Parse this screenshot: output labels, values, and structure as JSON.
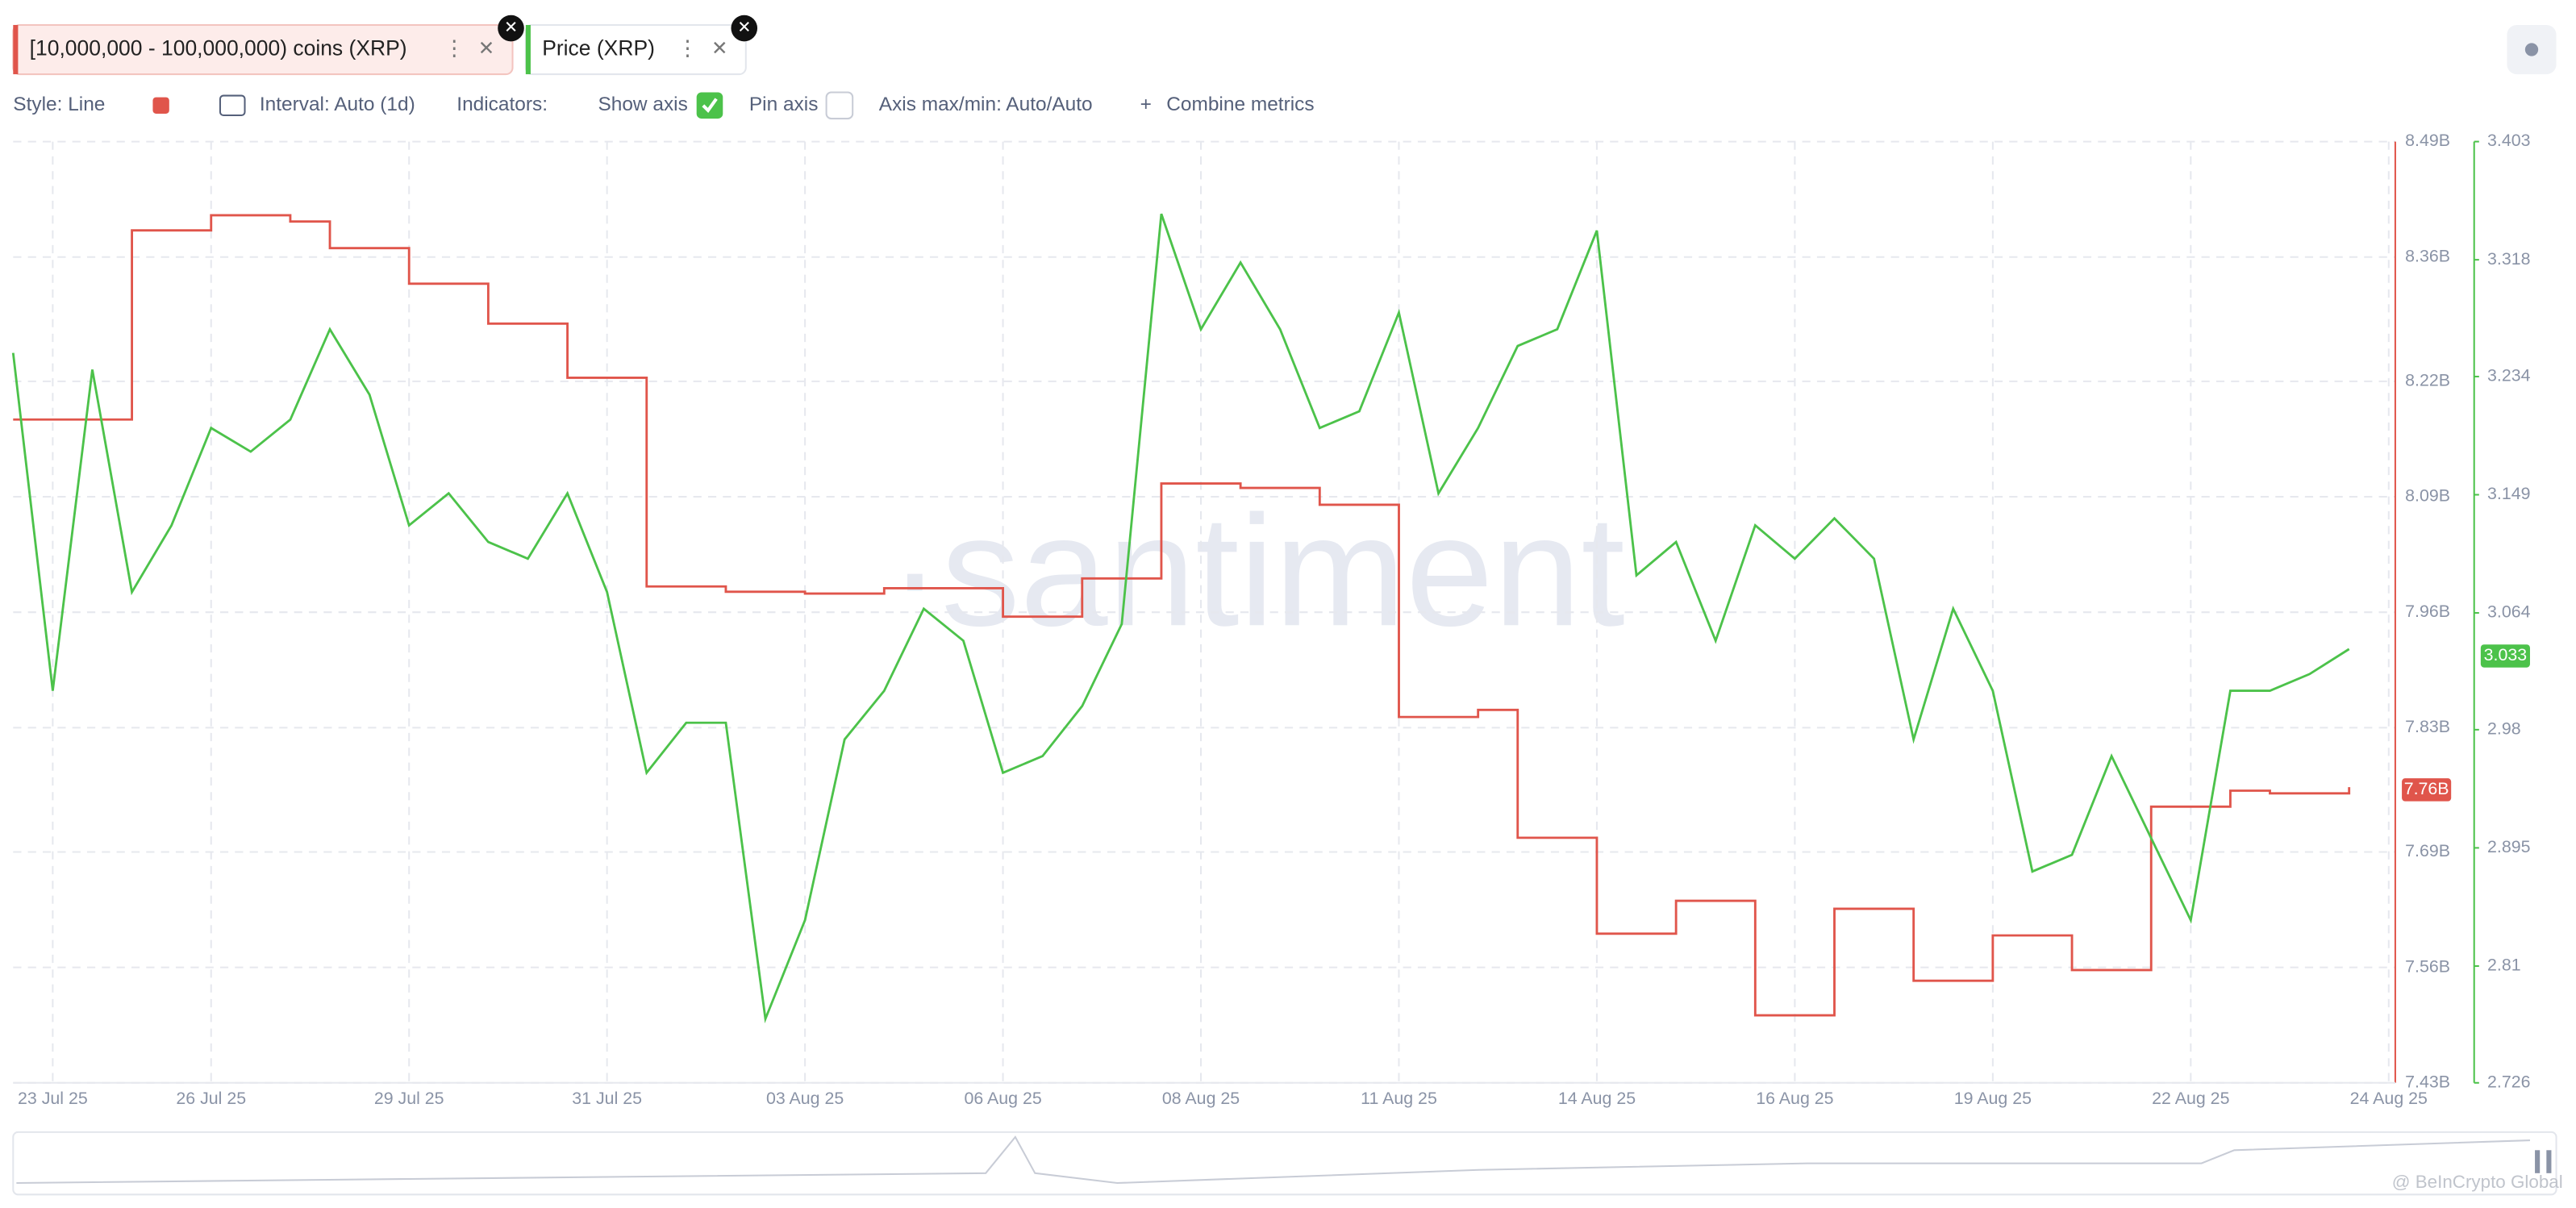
{
  "ui": {
    "toolbar": [
      "Style: Line",
      "Interval: Auto (1d)",
      "Indicators:",
      "Show axis",
      "Pin axis",
      "Axis max/min: Auto/Auto",
      "Combine metrics"
    ],
    "watermark": "·santiment",
    "credit": "@ BeInCrypto Global"
  },
  "chart_data": {
    "type": "line",
    "categories": [
      null,
      "23 Jul 25",
      null,
      null,
      null,
      "26 Jul 25",
      null,
      null,
      null,
      null,
      "29 Jul 25",
      null,
      null,
      null,
      null,
      "31 Jul 25",
      null,
      null,
      null,
      null,
      "03 Aug 25",
      null,
      null,
      null,
      null,
      "06 Aug 25",
      null,
      null,
      null,
      null,
      "08 Aug 25",
      null,
      null,
      null,
      null,
      "11 Aug 25",
      null,
      null,
      null,
      null,
      "14 Aug 25",
      null,
      null,
      null,
      null,
      "16 Aug 25",
      null,
      null,
      null,
      null,
      "19 Aug 25",
      null,
      null,
      null,
      null,
      "22 Aug 25",
      null,
      null,
      null,
      null,
      "24 Aug 25"
    ],
    "series": [
      {
        "name": "[10,000,000 - 100,000,000) coins (XRP)",
        "color": "#e0554b",
        "axis": "y",
        "step": true,
        "values": [
          8177000000,
          8177000000,
          8177000000,
          8390000000,
          8390000000,
          8407000000,
          8407000000,
          8400000000,
          8370000000,
          8370000000,
          8330000000,
          8330000000,
          8285000000,
          8285000000,
          8224000000,
          8224000000,
          7989000000,
          7989000000,
          7983000000,
          7983000000,
          7981000000,
          7981000000,
          7987000000,
          7987000000,
          7987000000,
          7955000000,
          7955000000,
          7998000000,
          7998000000,
          8105000000,
          8105000000,
          8100000000,
          8100000000,
          8081000000,
          8081000000,
          7842000000,
          7842000000,
          7850000000,
          7706000000,
          7706000000,
          7598000000,
          7598000000,
          7635000000,
          7635000000,
          7506000000,
          7506000000,
          7626000000,
          7626000000,
          7545000000,
          7545000000,
          7596000000,
          7596000000,
          7557000000,
          7557000000,
          7741000000,
          7741000000,
          7759000000,
          7756000000,
          7756000000,
          7763000000,
          null
        ],
        "last_value": {
          "value": 7760000000,
          "label": "7.76B"
        }
      },
      {
        "name": "Price (XRP)",
        "color": "#4cc24a",
        "axis": "y2",
        "values": [
          3.251,
          3.008,
          3.239,
          3.079,
          3.127,
          3.197,
          3.18,
          3.203,
          3.268,
          3.221,
          3.127,
          3.15,
          3.115,
          3.103,
          3.15,
          3.079,
          2.949,
          2.985,
          2.985,
          2.772,
          2.843,
          2.973,
          3.008,
          3.067,
          3.044,
          2.949,
          2.961,
          2.997,
          3.056,
          3.351,
          3.268,
          3.316,
          3.268,
          3.197,
          3.209,
          3.28,
          3.15,
          3.197,
          3.256,
          3.268,
          3.339,
          3.091,
          3.115,
          3.044,
          3.127,
          3.103,
          3.132,
          3.103,
          2.973,
          3.067,
          3.008,
          2.878,
          2.89,
          2.961,
          2.902,
          2.843,
          3.008,
          3.008,
          3.02,
          3.038,
          null
        ],
        "last_value": 3.033
      }
    ],
    "ylim": [
      7430000000,
      8490000000
    ],
    "yticks": [
      {
        "value": 8490000000,
        "label": "8.49B"
      },
      {
        "value": 8360000000,
        "label": "8.36B"
      },
      {
        "value": 8220000000,
        "label": "8.22B"
      },
      {
        "value": 8090000000,
        "label": "8.09B"
      },
      {
        "value": 7960000000,
        "label": "7.96B"
      },
      {
        "value": 7830000000,
        "label": "7.83B"
      },
      {
        "value": 7690000000,
        "label": "7.69B"
      },
      {
        "value": 7560000000,
        "label": "7.56B"
      },
      {
        "value": 7430000000,
        "label": "7.43B"
      }
    ],
    "y2lim": [
      2.726,
      3.403
    ],
    "y2ticks": [
      3.403,
      3.318,
      3.234,
      3.149,
      3.064,
      2.98,
      2.895,
      2.81,
      2.726
    ],
    "grid": true
  }
}
